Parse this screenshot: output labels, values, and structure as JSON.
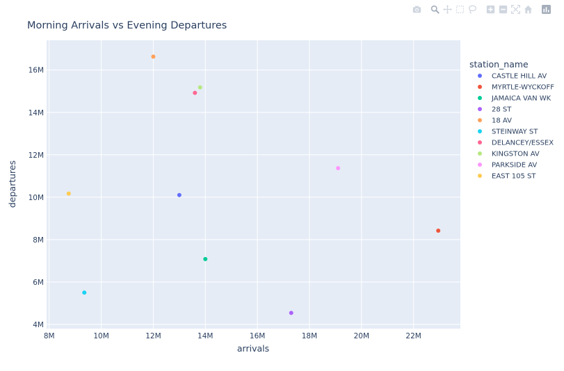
{
  "chart_data": {
    "type": "scatter",
    "title": "Morning Arrivals vs Evening Departures",
    "xlabel": "arrivals",
    "ylabel": "departures",
    "legend_title": "station_name",
    "legend_position": "right",
    "grid": true,
    "xlim": [
      7900000,
      23800000
    ],
    "ylim": [
      3800000,
      17400000
    ],
    "x_ticks": [
      8000000,
      10000000,
      12000000,
      14000000,
      16000000,
      18000000,
      20000000,
      22000000
    ],
    "x_tick_labels": [
      "8M",
      "10M",
      "12M",
      "14M",
      "16M",
      "18M",
      "20M",
      "22M"
    ],
    "y_ticks": [
      4000000,
      6000000,
      8000000,
      10000000,
      12000000,
      14000000,
      16000000
    ],
    "y_tick_labels": [
      "4M",
      "6M",
      "8M",
      "10M",
      "12M",
      "14M",
      "16M"
    ],
    "series": [
      {
        "name": "CASTLE HILL AV",
        "color": "#636efa",
        "x": [
          13000000
        ],
        "y": [
          10100000
        ]
      },
      {
        "name": "MYRTLE-WYCKOFF",
        "color": "#EF553B",
        "x": [
          22950000
        ],
        "y": [
          8420000
        ]
      },
      {
        "name": "JAMAICA VAN WK",
        "color": "#00cc96",
        "x": [
          14000000
        ],
        "y": [
          7080000
        ]
      },
      {
        "name": "28 ST",
        "color": "#ab63fa",
        "x": [
          17300000
        ],
        "y": [
          4540000
        ]
      },
      {
        "name": "18 AV",
        "color": "#FFA15A",
        "x": [
          12000000
        ],
        "y": [
          16630000
        ]
      },
      {
        "name": "STEINWAY ST",
        "color": "#19d3f3",
        "x": [
          9350000
        ],
        "y": [
          5500000
        ]
      },
      {
        "name": "DELANCEY/ESSEX",
        "color": "#FF6692",
        "x": [
          13600000
        ],
        "y": [
          14920000
        ]
      },
      {
        "name": "KINGSTON AV",
        "color": "#B6E880",
        "x": [
          13800000
        ],
        "y": [
          15180000
        ]
      },
      {
        "name": "PARKSIDE AV",
        "color": "#FF97FF",
        "x": [
          19100000
        ],
        "y": [
          11370000
        ]
      },
      {
        "name": "EAST 105 ST",
        "color": "#FECB52",
        "x": [
          8750000
        ],
        "y": [
          10170000
        ]
      }
    ]
  },
  "modebar": {
    "icons": [
      "camera-icon",
      "zoom-icon",
      "pan-icon",
      "box-select-icon",
      "lasso-select-icon",
      "zoom-in-icon",
      "zoom-out-icon",
      "autoscale-icon",
      "home-icon",
      "plotly-logo-icon"
    ]
  }
}
